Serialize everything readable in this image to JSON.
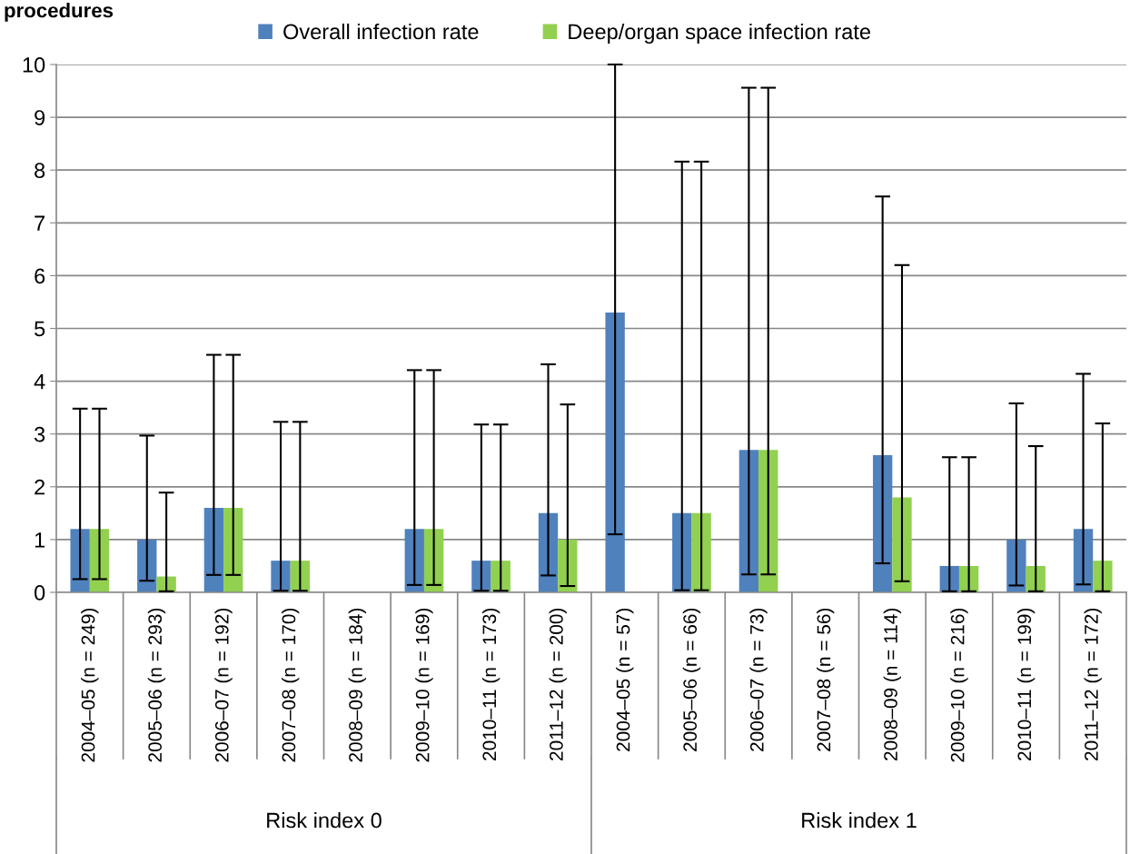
{
  "chart_data": {
    "type": "bar",
    "title": "procedures",
    "categories": [
      "2004–05 (n = 249)",
      "2005–06 (n = 293)",
      "2006–07 (n = 192)",
      "2007–08 (n = 170)",
      "2008–09 (n = 184)",
      "2009–10 (n = 169)",
      "2010–11 (n = 173)",
      "2011–12 (n = 200)",
      "2004–05 (n = 57)",
      "2005–06 (n = 66)",
      "2006–07 (n = 73)",
      "2007–08 (n = 56)",
      "2008–09 (n = 114)",
      "2009–10 (n = 216)",
      "2010–11 (n = 199)",
      "2011–12 (n = 172)"
    ],
    "series": [
      {
        "name": "Overall infection rate",
        "color": "#4f81bd",
        "values": [
          1.2,
          1.0,
          1.6,
          0.6,
          0,
          1.2,
          0.6,
          1.5,
          5.3,
          1.5,
          2.7,
          0,
          2.6,
          0.5,
          1.0,
          1.2
        ],
        "errors": [
          [
            0.25,
            3.48
          ],
          [
            0.22,
            2.97
          ],
          [
            0.33,
            4.5
          ],
          [
            0.03,
            3.23
          ],
          null,
          [
            0.14,
            4.21
          ],
          [
            0.03,
            3.18
          ],
          [
            0.32,
            4.32
          ],
          [
            1.1,
            10
          ],
          [
            0.04,
            8.16
          ],
          [
            0.34,
            9.56
          ],
          null,
          [
            0.55,
            7.5
          ],
          [
            0.02,
            2.56
          ],
          [
            0.13,
            3.58
          ],
          [
            0.15,
            4.14
          ]
        ]
      },
      {
        "name": "Deep/organ space infection rate",
        "color": "#92d050",
        "values": [
          1.2,
          0.3,
          1.6,
          0.6,
          0,
          1.2,
          0.6,
          1.0,
          0,
          1.5,
          2.7,
          0,
          1.8,
          0.5,
          0.5,
          0.6
        ],
        "errors": [
          [
            0.25,
            3.48
          ],
          [
            0.02,
            1.89
          ],
          [
            0.33,
            4.5
          ],
          [
            0.03,
            3.23
          ],
          null,
          [
            0.14,
            4.21
          ],
          [
            0.03,
            3.18
          ],
          [
            0.12,
            3.56
          ],
          null,
          [
            0.04,
            8.16
          ],
          [
            0.34,
            9.56
          ],
          null,
          [
            0.21,
            6.2
          ],
          [
            0.02,
            2.56
          ],
          [
            0.02,
            2.77
          ],
          [
            0.02,
            3.2
          ]
        ]
      }
    ],
    "ylim": [
      0,
      10
    ],
    "yticks": [
      0,
      1,
      2,
      3,
      4,
      5,
      6,
      7,
      8,
      9,
      10
    ],
    "grid": "y",
    "legend": "top",
    "annotations": [
      "Risk index 0",
      "Risk index 1"
    ]
  }
}
